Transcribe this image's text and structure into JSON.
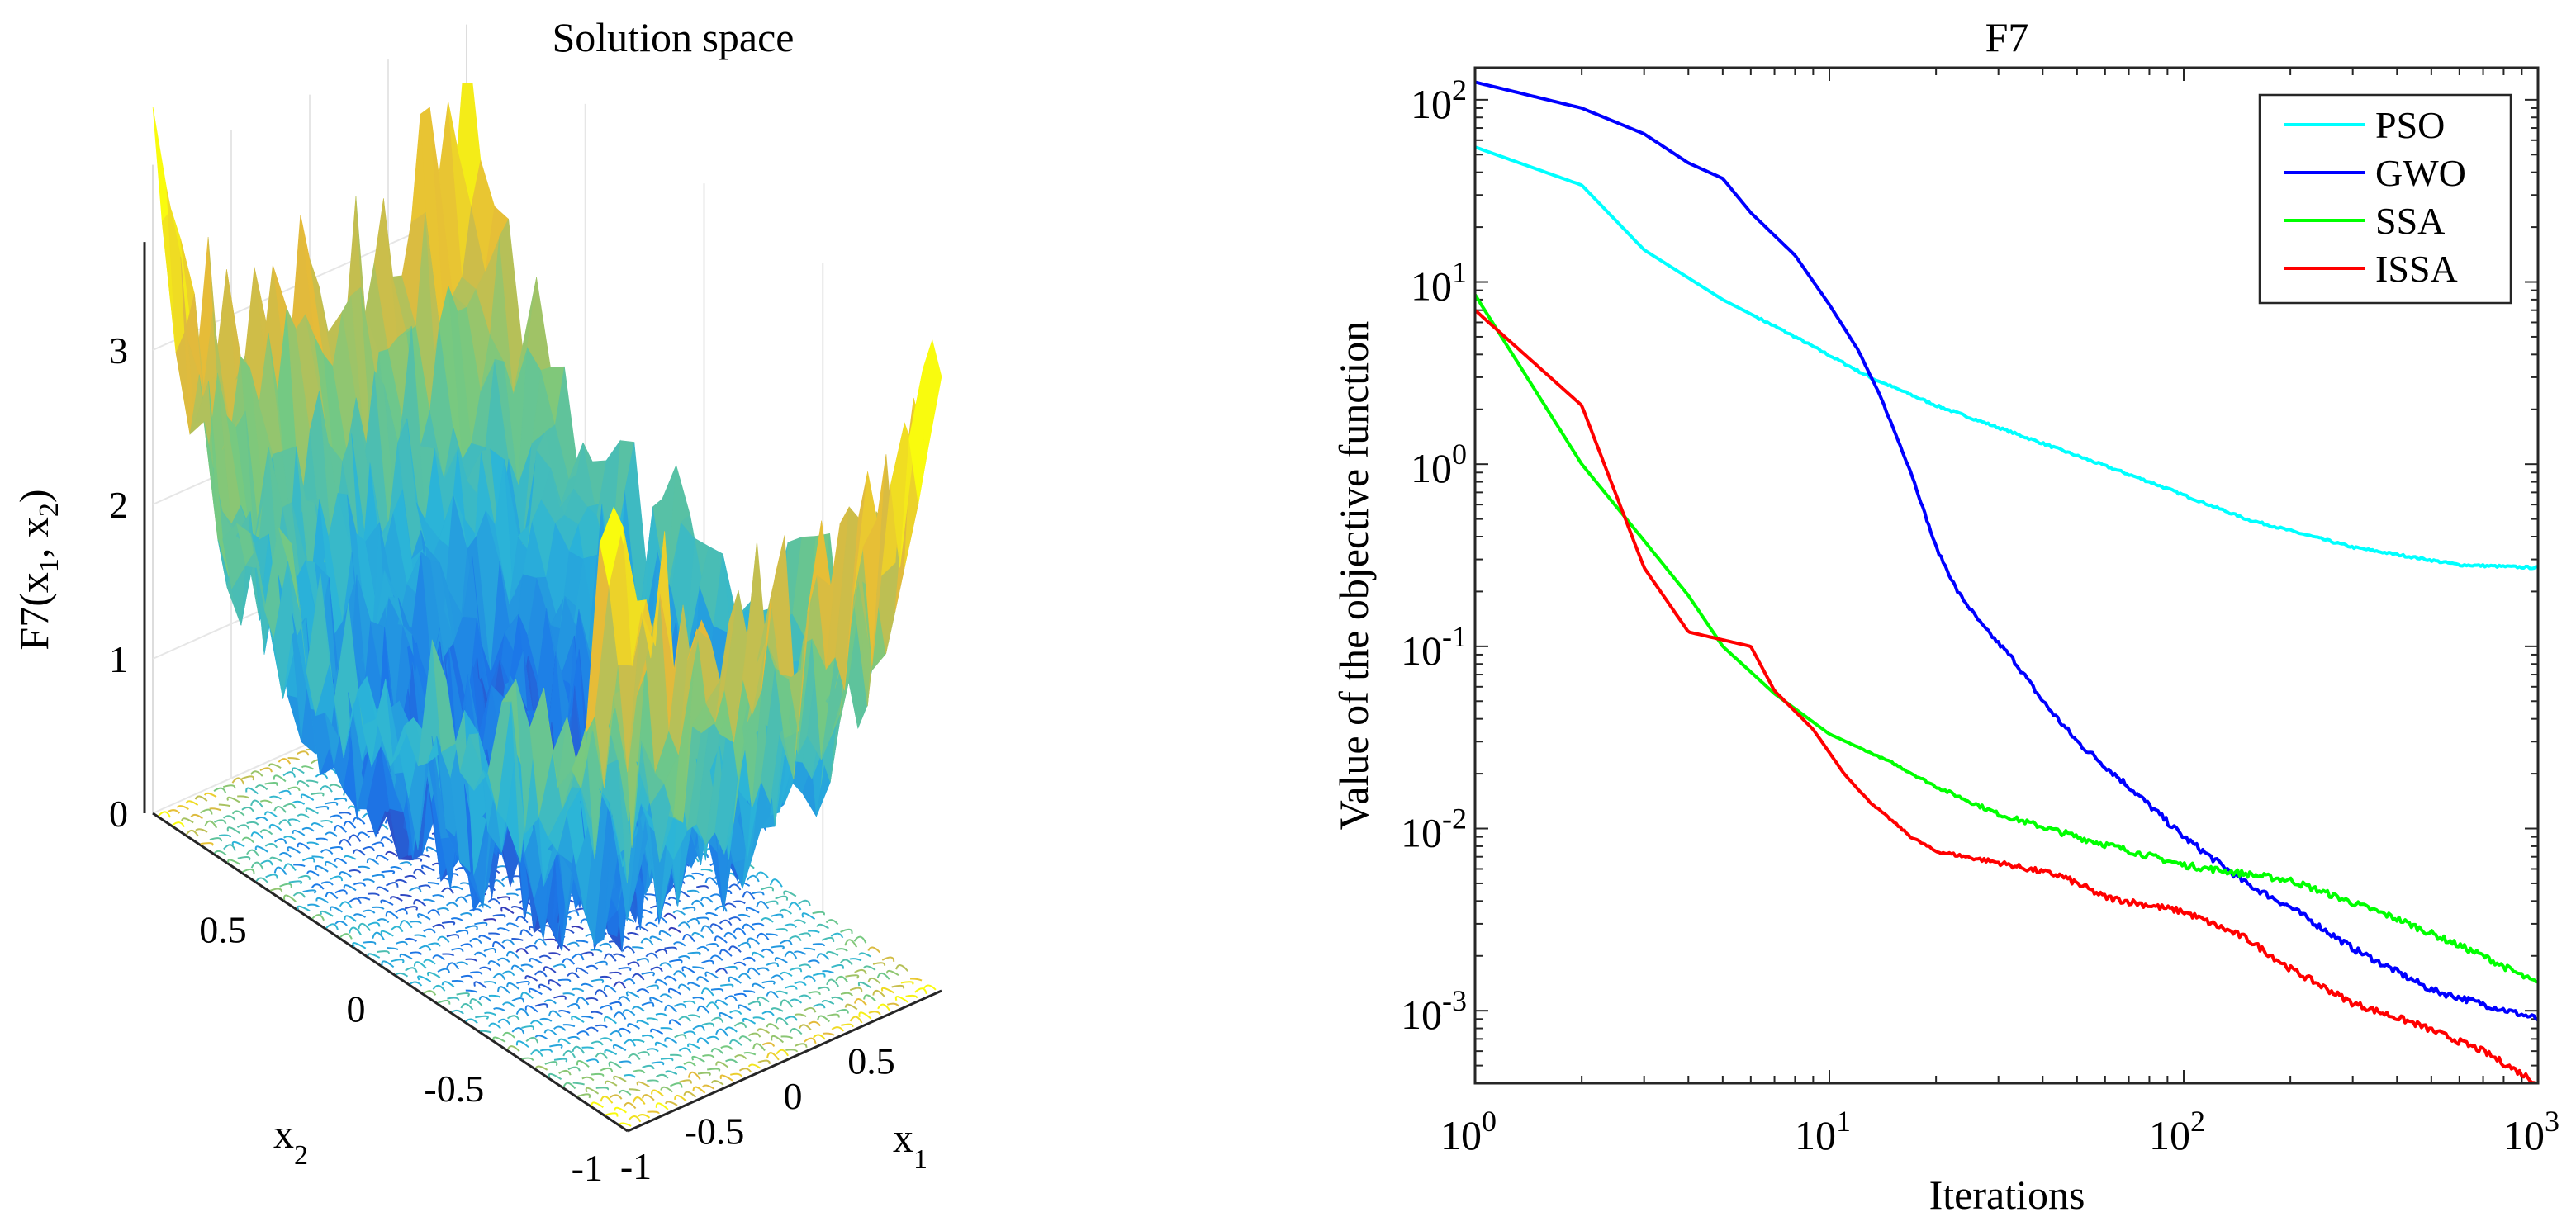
{
  "chart_data": [
    {
      "type": "surface3d",
      "title": "Solution space",
      "zlabel": "F7(x1, x2)",
      "xlabel": "x1",
      "ylabel": "x2",
      "xlim": [
        -1,
        1
      ],
      "ylim": [
        -1,
        1
      ],
      "zlim": [
        0,
        3.7
      ],
      "x_ticks": [
        "-1",
        "-0.5",
        "0",
        "0.5"
      ],
      "y_ticks": [
        "-1",
        "-0.5",
        "0",
        "0.5"
      ],
      "z_ticks": [
        "0",
        "1",
        "2",
        "3"
      ],
      "x_tick_values": [
        -1,
        -0.5,
        0,
        0.5
      ],
      "y_tick_values": [
        -1,
        -0.5,
        0,
        0.5
      ],
      "z_tick_values": [
        0,
        1,
        2,
        3
      ],
      "colormap": [
        "#3e26a8",
        "#1c78e8",
        "#2bb5d8",
        "#76c981",
        "#e5ba3a",
        "#f9fb0e"
      ],
      "grid": true
    },
    {
      "type": "line",
      "title": "F7",
      "xlabel": "Iterations",
      "ylabel": "Value of the objective function",
      "xscale": "log",
      "yscale": "log",
      "xlim": [
        1,
        1000
      ],
      "ylim": [
        0.0004,
        150
      ],
      "x_ticks": [
        {
          "base": "10",
          "exp": "0",
          "value": 1
        },
        {
          "base": "10",
          "exp": "1",
          "value": 10
        },
        {
          "base": "10",
          "exp": "2",
          "value": 100
        },
        {
          "base": "10",
          "exp": "3",
          "value": 1000
        }
      ],
      "y_ticks": [
        {
          "base": "10",
          "exp": "-3",
          "value": 0.001
        },
        {
          "base": "10",
          "exp": "-2",
          "value": 0.01
        },
        {
          "base": "10",
          "exp": "-1",
          "value": 0.1
        },
        {
          "base": "10",
          "exp": "0",
          "value": 1
        },
        {
          "base": "10",
          "exp": "1",
          "value": 10
        },
        {
          "base": "10",
          "exp": "2",
          "value": 100
        }
      ],
      "legend_position": "top-right",
      "series": [
        {
          "name": "PSO",
          "color": "#00ffff",
          "x": [
            1,
            2,
            3,
            5,
            8,
            13,
            20,
            40,
            80,
            150,
            300,
            600,
            1000
          ],
          "y": [
            55,
            34,
            15,
            8,
            5,
            3,
            2.1,
            1.3,
            0.8,
            0.5,
            0.35,
            0.28,
            0.27
          ]
        },
        {
          "name": "GWO",
          "color": "#0000ff",
          "x": [
            1,
            2,
            3,
            4,
            5,
            6,
            8,
            10,
            12,
            14,
            17,
            20,
            23,
            27,
            33,
            40,
            50,
            70,
            100,
            150,
            200,
            300,
            500,
            1000
          ],
          "y": [
            125,
            90,
            65,
            45,
            37,
            24,
            14,
            7.5,
            4.3,
            2.3,
            0.9,
            0.35,
            0.2,
            0.13,
            0.085,
            0.05,
            0.03,
            0.017,
            0.009,
            0.005,
            0.0037,
            0.0022,
            0.0013,
            0.0009
          ]
        },
        {
          "name": "SSA",
          "color": "#00ff00",
          "x": [
            1,
            2,
            3,
            4,
            5,
            7,
            10,
            15,
            20,
            30,
            50,
            100,
            200,
            400,
            700,
            1000
          ],
          "y": [
            8.5,
            1.0,
            0.38,
            0.19,
            0.1,
            0.055,
            0.033,
            0.023,
            0.017,
            0.012,
            0.009,
            0.0063,
            0.0052,
            0.0032,
            0.002,
            0.0014
          ]
        },
        {
          "name": "ISSA",
          "color": "#ff0000",
          "x": [
            1,
            2,
            3,
            4,
            6,
            7,
            9,
            11,
            13,
            17,
            20,
            30,
            45,
            60,
            100,
            150,
            200,
            300,
            450,
            700,
            1000
          ],
          "y": [
            7,
            2.1,
            0.27,
            0.12,
            0.1,
            0.057,
            0.035,
            0.02,
            0.014,
            0.009,
            0.0075,
            0.0065,
            0.0055,
            0.0042,
            0.0035,
            0.0025,
            0.0017,
            0.0011,
            0.00085,
            0.0006,
            0.0004
          ]
        }
      ]
    }
  ]
}
